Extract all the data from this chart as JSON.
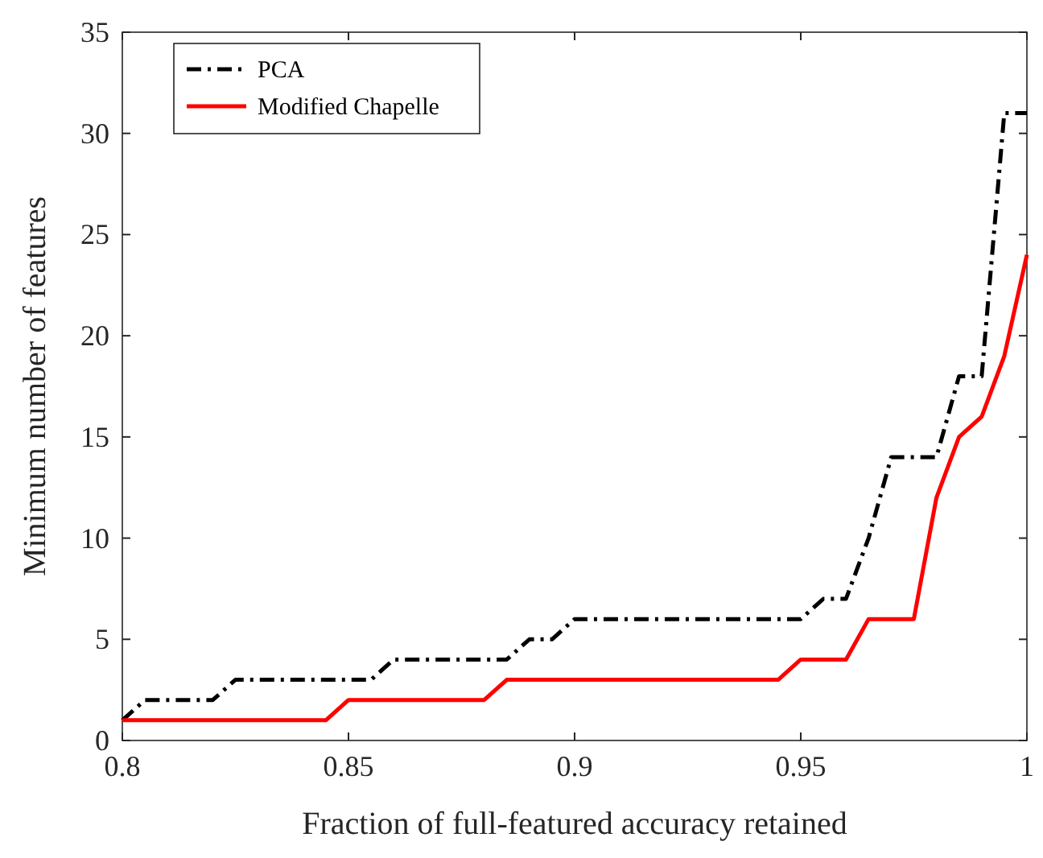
{
  "chart_data": {
    "type": "line",
    "xlabel": "Fraction of full-featured accuracy retained",
    "ylabel": "Minimum number of features",
    "x": [
      0.8,
      0.805,
      0.81,
      0.815,
      0.82,
      0.825,
      0.83,
      0.835,
      0.84,
      0.845,
      0.85,
      0.855,
      0.86,
      0.865,
      0.87,
      0.875,
      0.88,
      0.885,
      0.89,
      0.895,
      0.9,
      0.905,
      0.91,
      0.915,
      0.92,
      0.925,
      0.93,
      0.935,
      0.94,
      0.945,
      0.95,
      0.955,
      0.96,
      0.965,
      0.97,
      0.975,
      0.98,
      0.985,
      0.99,
      0.995,
      1.0
    ],
    "series": [
      {
        "name": "PCA",
        "color": "#000000",
        "line_style": "dashdot",
        "values": [
          1,
          2,
          2,
          2,
          2,
          3,
          3,
          3,
          3,
          3,
          3,
          3,
          4,
          4,
          4,
          4,
          4,
          4,
          5,
          5,
          6,
          6,
          6,
          6,
          6,
          6,
          6,
          6,
          6,
          6,
          6,
          7,
          7,
          10,
          14,
          14,
          14,
          18,
          18,
          31,
          31
        ]
      },
      {
        "name": "Modified Chapelle",
        "color": "#ff0000",
        "line_style": "solid",
        "values": [
          1,
          1,
          1,
          1,
          1,
          1,
          1,
          1,
          1,
          1,
          2,
          2,
          2,
          2,
          2,
          2,
          2,
          3,
          3,
          3,
          3,
          3,
          3,
          3,
          3,
          3,
          3,
          3,
          3,
          3,
          4,
          4,
          4,
          6,
          6,
          6,
          12,
          15,
          16,
          19,
          24
        ]
      }
    ],
    "xlim": [
      0.8,
      1
    ],
    "xticks": [
      {
        "value": 0.8,
        "label": "0.8"
      },
      {
        "value": 0.85,
        "label": "0.85"
      },
      {
        "value": 0.9,
        "label": "0.9"
      },
      {
        "value": 0.95,
        "label": "0.95"
      },
      {
        "value": 1,
        "label": "1"
      }
    ],
    "ylim": [
      0,
      35
    ],
    "yticks": [
      0,
      5,
      10,
      15,
      20,
      25,
      30,
      35
    ],
    "grid": false,
    "legend": "top left"
  }
}
